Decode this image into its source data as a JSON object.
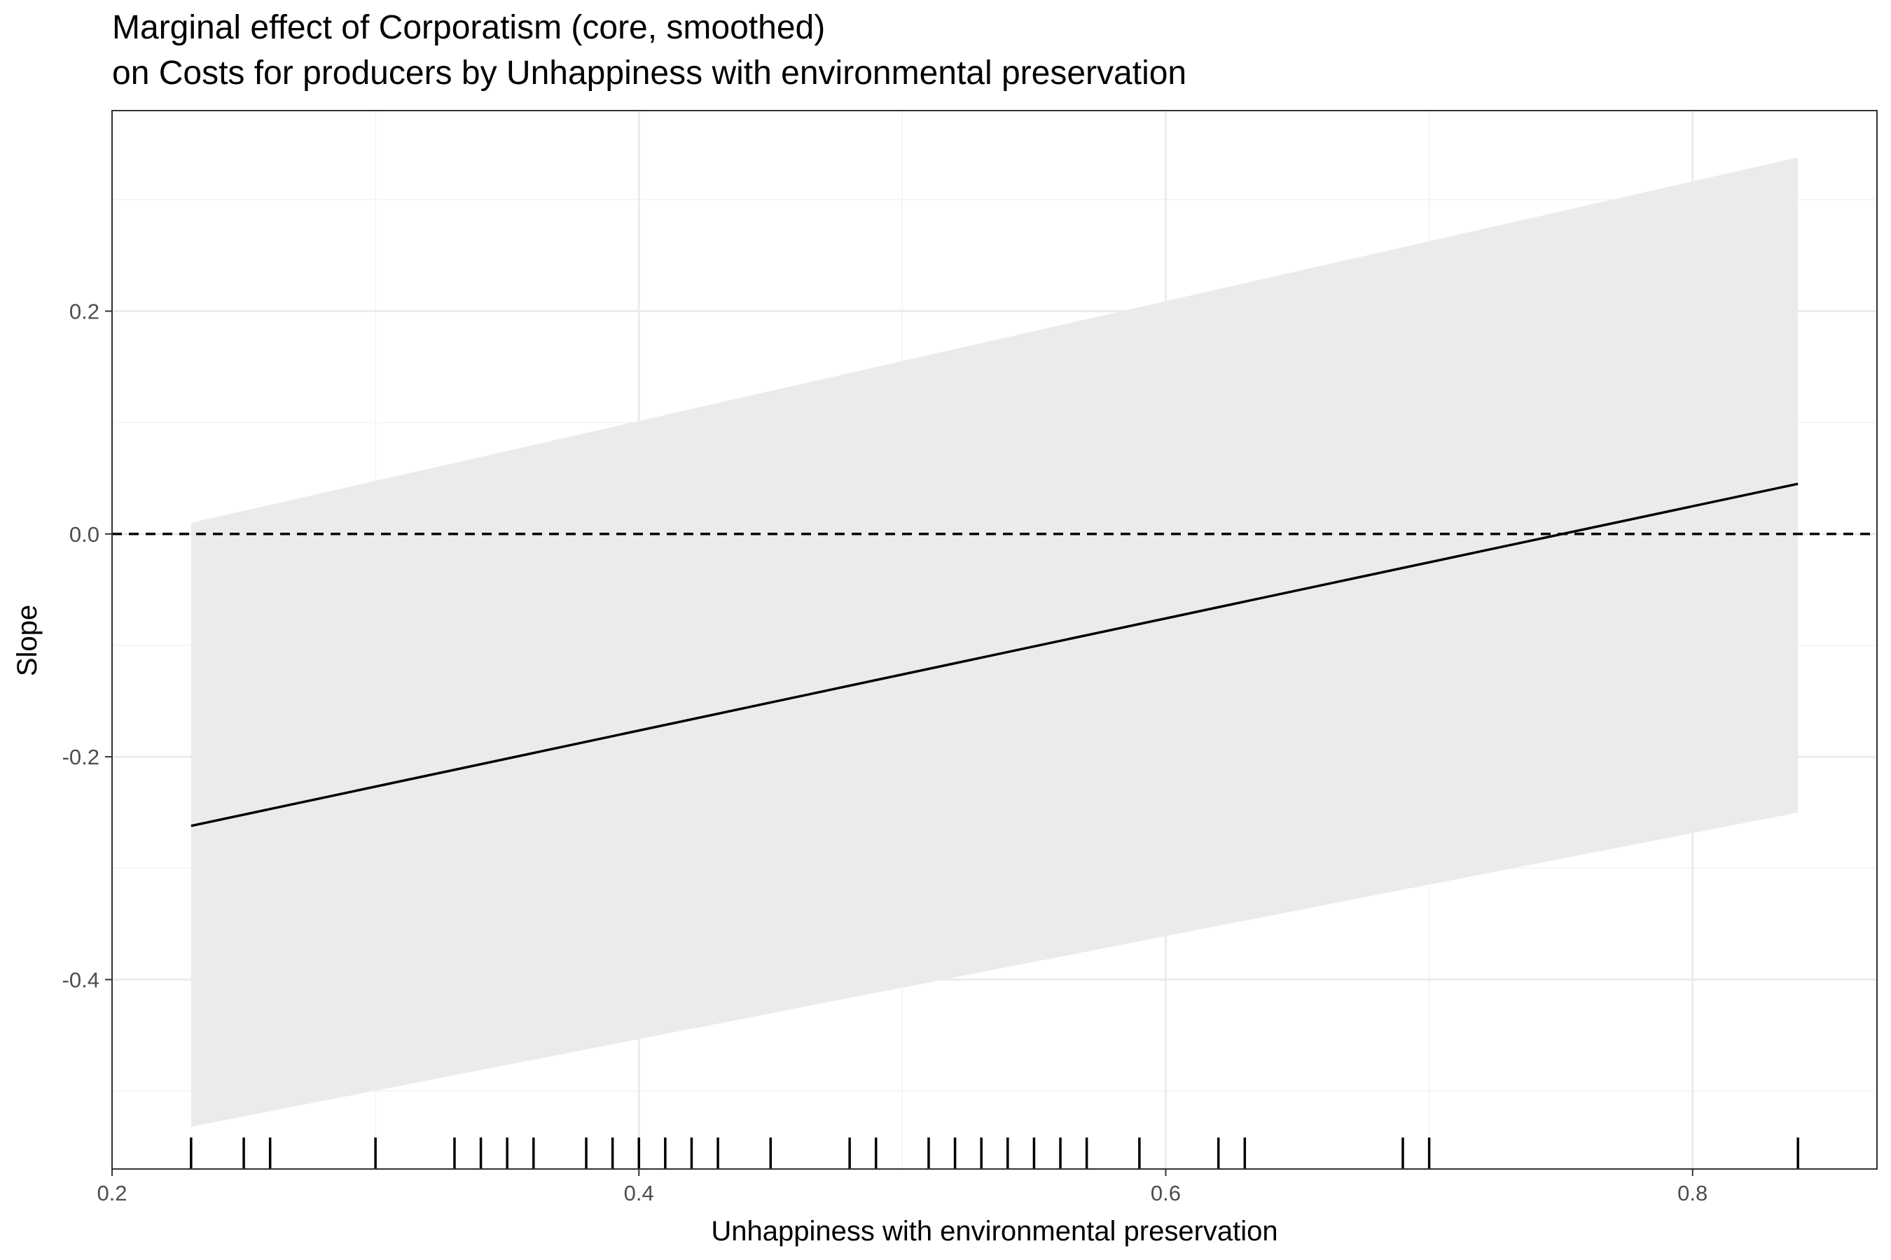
{
  "chart_data": {
    "type": "line",
    "title": "Marginal effect of Corporatism (core, smoothed)",
    "subtitle": "on Costs for producers by Unhappiness with environmental preservation",
    "xlabel": "Unhappiness with environmental preservation",
    "ylabel": "Slope",
    "xlim": [
      0.2,
      0.87
    ],
    "ylim": [
      -0.57,
      0.38
    ],
    "x_ticks": [
      0.2,
      0.4,
      0.6,
      0.8
    ],
    "x_tick_labels": [
      "0.2",
      "0.4",
      "0.6",
      "0.8"
    ],
    "y_ticks": [
      -0.4,
      -0.2,
      0.0,
      0.2
    ],
    "y_tick_labels": [
      "-0.4",
      "-0.2",
      "0.0",
      "0.2"
    ],
    "x_minor_ticks": [
      0.3,
      0.5,
      0.7
    ],
    "y_minor_ticks": [
      -0.5,
      -0.3,
      -0.1,
      0.1,
      0.3
    ],
    "grid": true,
    "reference_line": {
      "y": 0.0,
      "style": "dashed",
      "color": "#000000"
    },
    "series": [
      {
        "type": "line",
        "color": "#000000",
        "x": [
          0.23,
          0.84
        ],
        "y": [
          -0.262,
          0.045
        ]
      }
    ],
    "confidence_band": {
      "color": "#ebebeb",
      "x": [
        0.23,
        0.84
      ],
      "lower": [
        -0.532,
        -0.25
      ],
      "upper": [
        0.01,
        0.338
      ]
    },
    "rug": {
      "color": "#000000",
      "x": [
        0.23,
        0.25,
        0.26,
        0.3,
        0.33,
        0.34,
        0.35,
        0.36,
        0.38,
        0.39,
        0.4,
        0.41,
        0.42,
        0.43,
        0.45,
        0.48,
        0.49,
        0.51,
        0.52,
        0.53,
        0.54,
        0.55,
        0.56,
        0.57,
        0.59,
        0.62,
        0.63,
        0.69,
        0.7,
        0.84
      ]
    }
  }
}
